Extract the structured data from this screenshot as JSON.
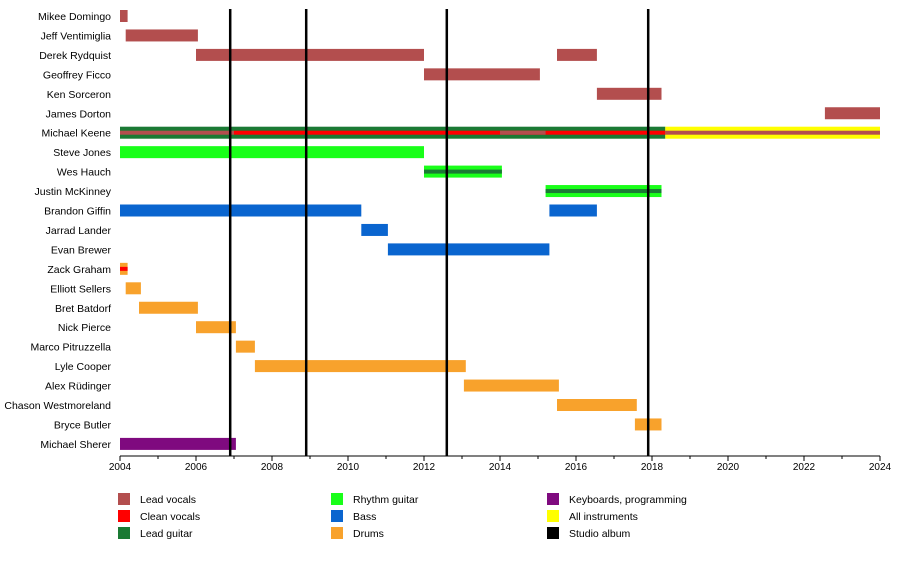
{
  "chart_data": {
    "type": "timeline",
    "title": "",
    "xlabel": "",
    "ylabel": "",
    "xlim": [
      2004,
      2024
    ],
    "x_ticks": [
      "2004",
      "2006",
      "2008",
      "2010",
      "2012",
      "2014",
      "2016",
      "2018",
      "2020",
      "2022",
      "2024"
    ],
    "members": [
      "Mikee Domingo",
      "Jeff Ventimiglia",
      "Derek Rydquist",
      "Geoffrey Ficco",
      "Ken Sorceron",
      "James Dorton",
      "Michael Keene",
      "Steve Jones",
      "Wes Hauch",
      "Justin McKinney",
      "Brandon Giffin",
      "Jarrad Lander",
      "Evan Brewer",
      "Zack Graham",
      "Elliott Sellers",
      "Bret Batdorf",
      "Nick Pierce",
      "Marco Pitruzzella",
      "Lyle Cooper",
      "Alex Rüdinger",
      "Chason Westmoreland",
      "Bryce Butler",
      "Michael Sherer"
    ],
    "roles": [
      {
        "key": "lead_vocals",
        "name": "Lead vocals",
        "color": "#b34e4e"
      },
      {
        "key": "clean_vocals",
        "name": "Clean vocals",
        "color": "#ff0000"
      },
      {
        "key": "lead_guitar",
        "name": "Lead guitar",
        "color": "#1a7a34"
      },
      {
        "key": "rhythm_guitar",
        "name": "Rhythm guitar",
        "color": "#19ff19"
      },
      {
        "key": "bass",
        "name": "Bass",
        "color": "#0a65cf"
      },
      {
        "key": "drums",
        "name": "Drums",
        "color": "#f8a22c"
      },
      {
        "key": "keyboards",
        "name": "Keyboards, programming",
        "color": "#7f0a7f"
      },
      {
        "key": "all_instruments",
        "name": "All instruments",
        "color": "#ffff00"
      },
      {
        "key": "studio_album",
        "name": "Studio album",
        "color": "#000000"
      }
    ],
    "bars": [
      {
        "member": "Mikee Domingo",
        "role": "lead_vocals",
        "start": 2004.0,
        "end": 2004.2
      },
      {
        "member": "Jeff Ventimiglia",
        "role": "lead_vocals",
        "start": 2004.15,
        "end": 2006.05
      },
      {
        "member": "Derek Rydquist",
        "role": "lead_vocals",
        "start": 2006.0,
        "end": 2012.0
      },
      {
        "member": "Derek Rydquist",
        "role": "lead_vocals",
        "start": 2015.5,
        "end": 2016.55
      },
      {
        "member": "Geoffrey Ficco",
        "role": "lead_vocals",
        "start": 2012.0,
        "end": 2015.05
      },
      {
        "member": "Ken Sorceron",
        "role": "lead_vocals",
        "start": 2016.55,
        "end": 2018.25
      },
      {
        "member": "James Dorton",
        "role": "lead_vocals",
        "start": 2022.55,
        "end": 2024.0
      },
      {
        "member": "Michael Keene",
        "role": "lead_guitar",
        "start": 2004.0,
        "end": 2018.35
      },
      {
        "member": "Michael Keene",
        "role": "all_instruments",
        "start": 2018.35,
        "end": 2024.0
      },
      {
        "member": "Steve Jones",
        "role": "rhythm_guitar",
        "start": 2004.0,
        "end": 2012.0
      },
      {
        "member": "Wes Hauch",
        "role": "rhythm_guitar",
        "start": 2012.0,
        "end": 2014.05
      },
      {
        "member": "Justin McKinney",
        "role": "rhythm_guitar",
        "start": 2015.2,
        "end": 2018.25
      },
      {
        "member": "Brandon Giffin",
        "role": "bass",
        "start": 2004.0,
        "end": 2010.35
      },
      {
        "member": "Brandon Giffin",
        "role": "bass",
        "start": 2015.3,
        "end": 2016.55
      },
      {
        "member": "Jarrad Lander",
        "role": "bass",
        "start": 2010.35,
        "end": 2011.05
      },
      {
        "member": "Evan Brewer",
        "role": "bass",
        "start": 2011.05,
        "end": 2015.3
      },
      {
        "member": "Zack Graham",
        "role": "drums",
        "start": 2004.0,
        "end": 2004.2
      },
      {
        "member": "Elliott Sellers",
        "role": "drums",
        "start": 2004.15,
        "end": 2004.55
      },
      {
        "member": "Bret Batdorf",
        "role": "drums",
        "start": 2004.5,
        "end": 2006.05
      },
      {
        "member": "Nick Pierce",
        "role": "drums",
        "start": 2006.0,
        "end": 2007.05
      },
      {
        "member": "Marco Pitruzzella",
        "role": "drums",
        "start": 2007.05,
        "end": 2007.55
      },
      {
        "member": "Lyle Cooper",
        "role": "drums",
        "start": 2007.55,
        "end": 2013.1
      },
      {
        "member": "Alex Rüdinger",
        "role": "drums",
        "start": 2013.05,
        "end": 2015.55
      },
      {
        "member": "Chason Westmoreland",
        "role": "drums",
        "start": 2015.5,
        "end": 2017.6
      },
      {
        "member": "Bryce Butler",
        "role": "drums",
        "start": 2017.55,
        "end": 2018.25
      },
      {
        "member": "Michael Sherer",
        "role": "keyboards",
        "start": 2004.0,
        "end": 2007.05
      }
    ],
    "inner_stripes": [
      {
        "member": "Michael Keene",
        "role": "lead_vocals",
        "start": 2004.0,
        "end": 2007.0
      },
      {
        "member": "Michael Keene",
        "role": "clean_vocals",
        "start": 2007.0,
        "end": 2018.35
      },
      {
        "member": "Michael Keene",
        "role": "lead_vocals",
        "start": 2014.0,
        "end": 2015.2
      },
      {
        "member": "Michael Keene",
        "role": "lead_vocals",
        "start": 2018.35,
        "end": 2024.0
      },
      {
        "member": "Wes Hauch",
        "role": "lead_guitar",
        "start": 2012.0,
        "end": 2014.05
      },
      {
        "member": "Justin McKinney",
        "role": "lead_guitar",
        "start": 2015.2,
        "end": 2018.25
      },
      {
        "member": "Zack Graham",
        "role": "clean_vocals",
        "start": 2004.0,
        "end": 2004.2
      }
    ],
    "studio_albums": [
      2006.9,
      2008.9,
      2012.6,
      2017.9
    ],
    "legend_position": "bottom"
  }
}
